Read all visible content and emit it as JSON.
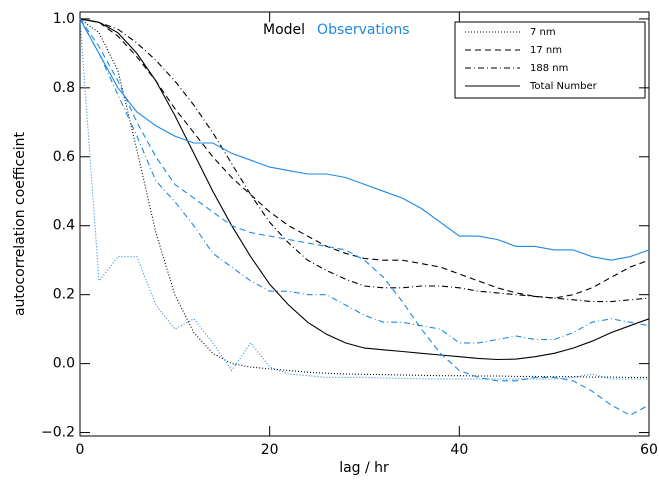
{
  "chart_data": {
    "type": "line",
    "xlabel": "lag / hr",
    "ylabel": "autocorrelation coefficeint",
    "annotations": [
      {
        "text": "Model",
        "color": "#000000"
      },
      {
        "text": "Observations",
        "color": "#1e88e5"
      }
    ],
    "legend": [
      {
        "label": "7 nm",
        "dash": "1,2"
      },
      {
        "label": "17 nm",
        "dash": "6,4"
      },
      {
        "label": "188 nm",
        "dash": "6,3,1,3"
      },
      {
        "label": "Total Number",
        "dash": "none"
      }
    ],
    "x": [
      0,
      2,
      4,
      6,
      8,
      10,
      12,
      14,
      16,
      18,
      20,
      22,
      24,
      26,
      28,
      30,
      32,
      34,
      36,
      38,
      40,
      42,
      44,
      46,
      48,
      50,
      52,
      54,
      56,
      58,
      60
    ],
    "xlim": [
      0,
      60
    ],
    "xticks": [
      0,
      20,
      40,
      60
    ],
    "ylim": [
      -0.21,
      1.02
    ],
    "yticks": [
      {
        "value": 1,
        "label": "1.0"
      },
      0.8,
      0.6,
      0.4,
      0.2,
      {
        "value": 0,
        "label": "0.0"
      },
      {
        "value": -0.2,
        "label": "−0.2"
      }
    ],
    "series": [
      {
        "color": "#000000",
        "dash": "1,2",
        "values": [
          1.0,
          0.96,
          0.85,
          0.62,
          0.38,
          0.2,
          0.09,
          0.03,
          0.0,
          -0.01,
          -0.015,
          -0.02,
          -0.025,
          -0.028,
          -0.03,
          -0.031,
          -0.032,
          -0.033,
          -0.034,
          -0.035,
          -0.035,
          -0.036,
          -0.036,
          -0.037,
          -0.037,
          -0.038,
          -0.038,
          -0.039,
          -0.039,
          -0.04,
          -0.04
        ]
      },
      {
        "color": "#000000",
        "dash": "6,4",
        "values": [
          1.0,
          0.99,
          0.95,
          0.89,
          0.82,
          0.74,
          0.67,
          0.6,
          0.54,
          0.49,
          0.44,
          0.4,
          0.37,
          0.34,
          0.32,
          0.305,
          0.3,
          0.3,
          0.29,
          0.28,
          0.26,
          0.24,
          0.22,
          0.205,
          0.195,
          0.19,
          0.2,
          0.22,
          0.25,
          0.28,
          0.3
        ]
      },
      {
        "color": "#000000",
        "dash": "6,3,1,3",
        "values": [
          1.0,
          0.99,
          0.97,
          0.93,
          0.88,
          0.82,
          0.75,
          0.67,
          0.58,
          0.49,
          0.41,
          0.35,
          0.3,
          0.27,
          0.245,
          0.225,
          0.22,
          0.22,
          0.225,
          0.225,
          0.22,
          0.21,
          0.205,
          0.2,
          0.195,
          0.19,
          0.185,
          0.18,
          0.18,
          0.185,
          0.19
        ]
      },
      {
        "color": "#000000",
        "dash": "none",
        "values": [
          1.0,
          0.99,
          0.96,
          0.9,
          0.82,
          0.72,
          0.61,
          0.5,
          0.4,
          0.31,
          0.23,
          0.17,
          0.12,
          0.085,
          0.06,
          0.045,
          0.04,
          0.035,
          0.03,
          0.025,
          0.02,
          0.015,
          0.012,
          0.013,
          0.02,
          0.03,
          0.045,
          0.065,
          0.09,
          0.11,
          0.13
        ]
      },
      {
        "color": "#1e88e5",
        "dash": "1,2",
        "values": [
          1.0,
          0.24,
          0.31,
          0.31,
          0.17,
          0.1,
          0.13,
          0.06,
          -0.02,
          0.06,
          -0.01,
          -0.03,
          -0.035,
          -0.04,
          -0.04,
          -0.04,
          -0.042,
          -0.043,
          -0.044,
          -0.045,
          -0.045,
          -0.045,
          -0.045,
          -0.045,
          -0.045,
          -0.045,
          -0.04,
          -0.03,
          -0.045,
          -0.045,
          -0.045
        ]
      },
      {
        "color": "#1e88e5",
        "dash": "6,4",
        "values": [
          1.0,
          0.92,
          0.82,
          0.7,
          0.6,
          0.52,
          0.48,
          0.44,
          0.4,
          0.38,
          0.37,
          0.36,
          0.35,
          0.34,
          0.33,
          0.3,
          0.25,
          0.18,
          0.1,
          0.03,
          -0.02,
          -0.04,
          -0.05,
          -0.05,
          -0.04,
          -0.04,
          -0.05,
          -0.08,
          -0.12,
          -0.15,
          -0.12
        ]
      },
      {
        "color": "#1e88e5",
        "dash": "6,3,1,3",
        "values": [
          1.0,
          0.9,
          0.78,
          0.66,
          0.53,
          0.47,
          0.4,
          0.32,
          0.28,
          0.24,
          0.21,
          0.21,
          0.2,
          0.2,
          0.17,
          0.14,
          0.12,
          0.12,
          0.11,
          0.1,
          0.06,
          0.06,
          0.07,
          0.08,
          0.07,
          0.07,
          0.09,
          0.12,
          0.13,
          0.12,
          0.11
        ]
      },
      {
        "color": "#1e88e5",
        "dash": "none",
        "values": [
          1.0,
          0.9,
          0.8,
          0.73,
          0.69,
          0.66,
          0.64,
          0.64,
          0.61,
          0.59,
          0.57,
          0.56,
          0.55,
          0.55,
          0.54,
          0.52,
          0.5,
          0.48,
          0.45,
          0.41,
          0.37,
          0.37,
          0.36,
          0.34,
          0.34,
          0.33,
          0.33,
          0.31,
          0.3,
          0.31,
          0.33
        ]
      }
    ]
  }
}
